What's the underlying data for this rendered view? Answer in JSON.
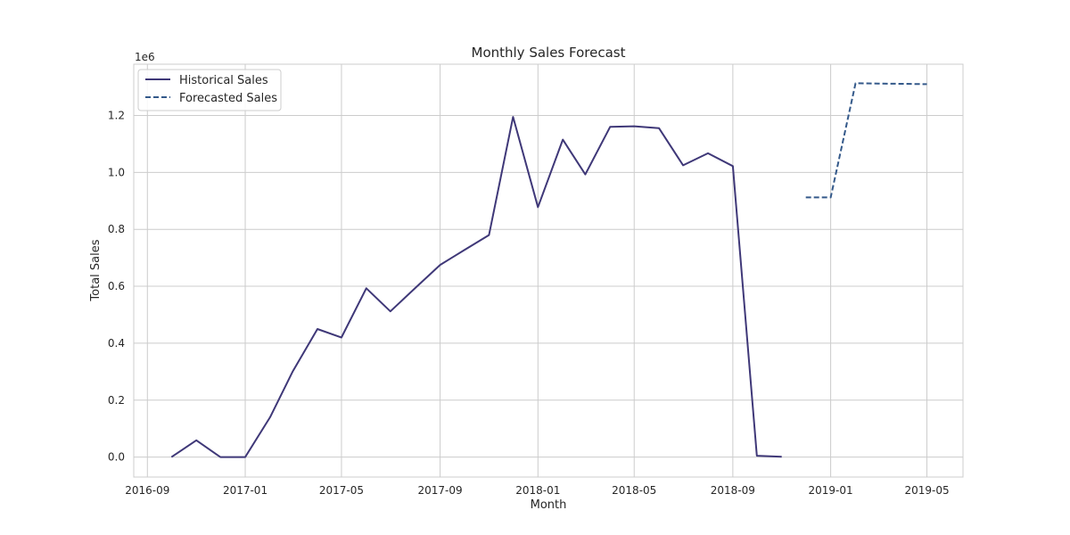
{
  "colors": {
    "historical": "#3f3878",
    "forecast": "#34598a",
    "grid": "#cccccc",
    "frame": "#cccccc",
    "text": "#262626"
  },
  "chart_data": {
    "type": "line",
    "title": "Monthly Sales Forecast",
    "xlabel": "Month",
    "ylabel": "Total Sales",
    "y_offset_label": "1e6",
    "grid": true,
    "legend_position": "top-left",
    "xlim": [
      "2016-08-15",
      "2019-06-15"
    ],
    "ylim": [
      -70000,
      1380000
    ],
    "x_ticks": [
      "2016-09",
      "2017-01",
      "2017-05",
      "2017-09",
      "2018-01",
      "2018-05",
      "2018-09",
      "2019-01",
      "2019-05"
    ],
    "y_ticks": [
      0.0,
      0.2,
      0.4,
      0.6,
      0.8,
      1.0,
      1.2
    ],
    "y_tick_labels": [
      "0.0",
      "0.2",
      "0.4",
      "0.6",
      "0.8",
      "1.0",
      "1.2"
    ],
    "series": [
      {
        "name": "Historical Sales",
        "style": "solid",
        "x": [
          "2016-10-01",
          "2016-11-01",
          "2016-12-01",
          "2017-01-01",
          "2017-02-01",
          "2017-03-01",
          "2017-04-01",
          "2017-05-01",
          "2017-06-01",
          "2017-07-01",
          "2017-08-01",
          "2017-09-01",
          "2017-10-01",
          "2017-11-01",
          "2017-12-01",
          "2018-01-01",
          "2018-02-01",
          "2018-03-01",
          "2018-04-01",
          "2018-05-01",
          "2018-06-01",
          "2018-07-01",
          "2018-08-01",
          "2018-09-01",
          "2018-10-01",
          "2018-11-01"
        ],
        "y": [
          0,
          59000,
          0,
          0,
          140000,
          300000,
          450000,
          420000,
          593000,
          512000,
          594000,
          675000,
          727000,
          780000,
          1195000,
          878000,
          1115000,
          993000,
          1160000,
          1162000,
          1155000,
          1025000,
          1067000,
          1022000,
          5000,
          1000
        ]
      },
      {
        "name": "Forecasted Sales",
        "style": "dashed",
        "x": [
          "2018-12-01",
          "2019-01-01",
          "2019-02-01",
          "2019-03-01",
          "2019-04-01",
          "2019-05-01"
        ],
        "y": [
          912000,
          912000,
          1313000,
          1312000,
          1311000,
          1310000
        ]
      }
    ]
  }
}
